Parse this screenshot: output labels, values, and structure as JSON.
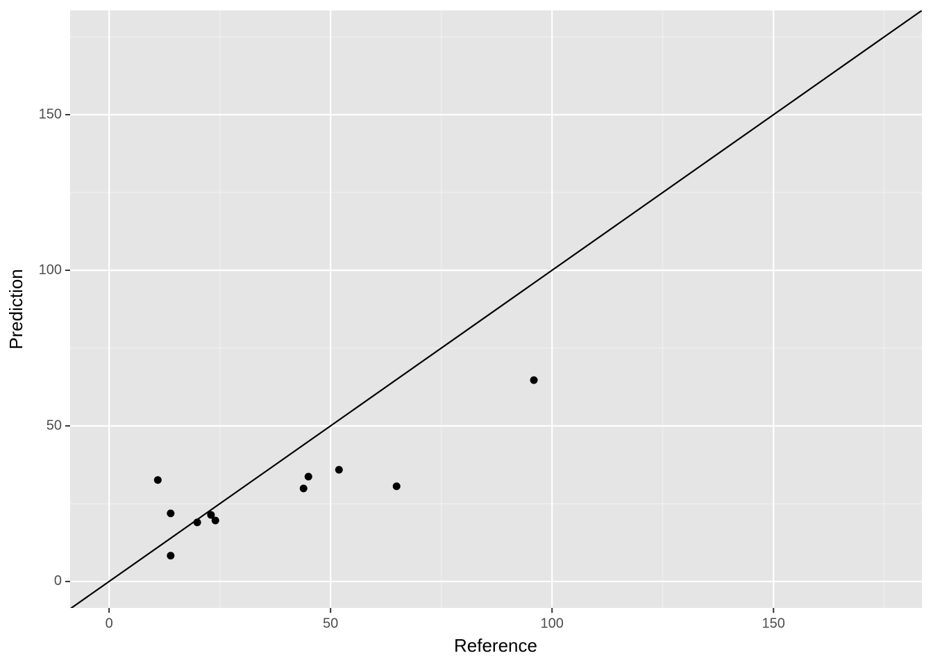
{
  "chart_data": {
    "type": "scatter",
    "x_label": "Reference",
    "y_label": "Prediction",
    "x": [
      11.0,
      13.9,
      13.9,
      19.9,
      23.0,
      24.0,
      43.9,
      45.0,
      51.9,
      64.9,
      95.9
    ],
    "values": [
      32.6,
      21.9,
      8.3,
      19.0,
      21.4,
      19.6,
      29.9,
      33.7,
      35.9,
      30.6,
      64.7
    ],
    "color": "#000000",
    "xlim": [
      -8.8,
      183.5
    ],
    "ylim": [
      -8.5,
      183.5
    ],
    "xticks": [
      0,
      50,
      100,
      150
    ],
    "yticks": [
      0,
      50,
      100,
      150
    ],
    "x_minor_ticks": [
      25,
      75,
      125,
      175
    ],
    "y_minor_ticks": [
      25,
      75,
      125,
      175
    ],
    "reference_line": {
      "slope": 1,
      "intercept": 0
    },
    "grid": true
  }
}
